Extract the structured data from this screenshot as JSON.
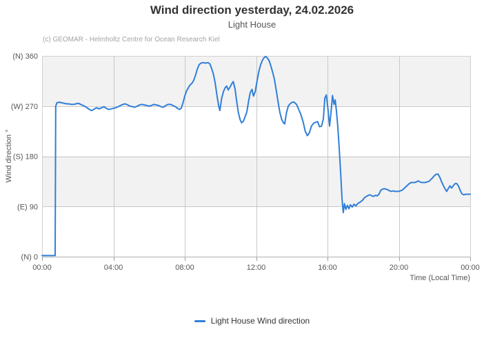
{
  "header": {
    "title": "Wind direction yesterday, 24.02.2026",
    "subtitle": "Light House"
  },
  "credits": "(c) GEOMAR - Helmholtz Centre for Ocean Research Kiel",
  "legend": {
    "label": "Light House Wind direction"
  },
  "colors": {
    "series_line": "#2f7ed8",
    "band_fill": "#f2f2f2",
    "grid_line": "#c8c8c8",
    "plot_border": "#d0d0d0",
    "axis_line": "#b0b0b0",
    "tick_mark": "#999999",
    "axis_label": "#555555"
  },
  "chart_data": {
    "type": "line",
    "title": "Wind direction yesterday, 24.02.2026",
    "subtitle": "Light House",
    "xlabel": "Time (Local Time)",
    "ylabel": "Wind direction °",
    "ylim": [
      0,
      360
    ],
    "xlim_minutes": [
      0,
      1440
    ],
    "grid": true,
    "legend_position": "bottom-center",
    "alternating_bands_deg": [
      [
        270,
        360
      ],
      [
        90,
        180
      ]
    ],
    "yticks": [
      {
        "value": 360,
        "label": "(N) 360"
      },
      {
        "value": 270,
        "label": "(W) 270"
      },
      {
        "value": 180,
        "label": "(S) 180"
      },
      {
        "value": 90,
        "label": "(E) 90"
      },
      {
        "value": 0,
        "label": "(N) 0"
      }
    ],
    "xticks": [
      {
        "minutes": 0,
        "label": "00:00"
      },
      {
        "minutes": 240,
        "label": "04:00"
      },
      {
        "minutes": 480,
        "label": "08:00"
      },
      {
        "minutes": 720,
        "label": "12:00"
      },
      {
        "minutes": 960,
        "label": "16:00"
      },
      {
        "minutes": 1200,
        "label": "20:00"
      },
      {
        "minutes": 1440,
        "label": "00:00"
      }
    ],
    "series": [
      {
        "name": "Light House Wind direction",
        "color": "#2f7ed8",
        "points_min_deg": [
          [
            0,
            2
          ],
          [
            10,
            2
          ],
          [
            20,
            2
          ],
          [
            30,
            2
          ],
          [
            40,
            2
          ],
          [
            44,
            2
          ],
          [
            46,
            270
          ],
          [
            50,
            276
          ],
          [
            58,
            277
          ],
          [
            66,
            276
          ],
          [
            74,
            275
          ],
          [
            82,
            274
          ],
          [
            90,
            274
          ],
          [
            98,
            273
          ],
          [
            106,
            273
          ],
          [
            114,
            274
          ],
          [
            122,
            275
          ],
          [
            130,
            273
          ],
          [
            138,
            271
          ],
          [
            146,
            269
          ],
          [
            154,
            266
          ],
          [
            162,
            263
          ],
          [
            168,
            262
          ],
          [
            176,
            265
          ],
          [
            184,
            267
          ],
          [
            192,
            265
          ],
          [
            200,
            267
          ],
          [
            208,
            269
          ],
          [
            216,
            266
          ],
          [
            224,
            264
          ],
          [
            232,
            265
          ],
          [
            240,
            266
          ],
          [
            248,
            267
          ],
          [
            256,
            269
          ],
          [
            264,
            271
          ],
          [
            272,
            273
          ],
          [
            280,
            274
          ],
          [
            288,
            272
          ],
          [
            296,
            270
          ],
          [
            304,
            269
          ],
          [
            312,
            268
          ],
          [
            320,
            270
          ],
          [
            328,
            272
          ],
          [
            336,
            273
          ],
          [
            344,
            272
          ],
          [
            352,
            271
          ],
          [
            360,
            270
          ],
          [
            368,
            271
          ],
          [
            376,
            273
          ],
          [
            384,
            272
          ],
          [
            392,
            271
          ],
          [
            400,
            269
          ],
          [
            408,
            268
          ],
          [
            416,
            271
          ],
          [
            424,
            273
          ],
          [
            432,
            273
          ],
          [
            440,
            271
          ],
          [
            448,
            269
          ],
          [
            456,
            266
          ],
          [
            462,
            264
          ],
          [
            468,
            266
          ],
          [
            474,
            276
          ],
          [
            480,
            288
          ],
          [
            486,
            297
          ],
          [
            492,
            303
          ],
          [
            498,
            308
          ],
          [
            504,
            311
          ],
          [
            510,
            316
          ],
          [
            516,
            325
          ],
          [
            522,
            336
          ],
          [
            528,
            344
          ],
          [
            534,
            347
          ],
          [
            542,
            348
          ],
          [
            550,
            347
          ],
          [
            558,
            348
          ],
          [
            564,
            346
          ],
          [
            570,
            338
          ],
          [
            576,
            328
          ],
          [
            582,
            312
          ],
          [
            588,
            290
          ],
          [
            594,
            270
          ],
          [
            598,
            262
          ],
          [
            604,
            284
          ],
          [
            610,
            296
          ],
          [
            616,
            303
          ],
          [
            621,
            306
          ],
          [
            626,
            299
          ],
          [
            632,
            304
          ],
          [
            638,
            310
          ],
          [
            643,
            314
          ],
          [
            649,
            301
          ],
          [
            654,
            281
          ],
          [
            660,
            259
          ],
          [
            666,
            246
          ],
          [
            671,
            240
          ],
          [
            677,
            243
          ],
          [
            683,
            251
          ],
          [
            689,
            260
          ],
          [
            695,
            280
          ],
          [
            700,
            294
          ],
          [
            706,
            300
          ],
          [
            711,
            288
          ],
          [
            717,
            296
          ],
          [
            723,
            315
          ],
          [
            729,
            332
          ],
          [
            735,
            344
          ],
          [
            741,
            352
          ],
          [
            747,
            357
          ],
          [
            752,
            359
          ],
          [
            758,
            356
          ],
          [
            764,
            351
          ],
          [
            770,
            341
          ],
          [
            776,
            330
          ],
          [
            782,
            317
          ],
          [
            788,
            297
          ],
          [
            794,
            277
          ],
          [
            800,
            258
          ],
          [
            806,
            246
          ],
          [
            812,
            240
          ],
          [
            816,
            238
          ],
          [
            822,
            258
          ],
          [
            828,
            270
          ],
          [
            834,
            274
          ],
          [
            841,
            277
          ],
          [
            848,
            277
          ],
          [
            856,
            273
          ],
          [
            864,
            263
          ],
          [
            871,
            254
          ],
          [
            878,
            242
          ],
          [
            885,
            225
          ],
          [
            892,
            217
          ],
          [
            899,
            222
          ],
          [
            906,
            234
          ],
          [
            913,
            239
          ],
          [
            920,
            241
          ],
          [
            927,
            242
          ],
          [
            933,
            233
          ],
          [
            940,
            234
          ],
          [
            946,
            247
          ],
          [
            951,
            284
          ],
          [
            956,
            290
          ],
          [
            961,
            268
          ],
          [
            967,
            234
          ],
          [
            972,
            260
          ],
          [
            977,
            289
          ],
          [
            982,
            273
          ],
          [
            986,
            281
          ],
          [
            990,
            262
          ],
          [
            994,
            237
          ],
          [
            999,
            198
          ],
          [
            1004,
            152
          ],
          [
            1009,
            103
          ],
          [
            1013,
            79
          ],
          [
            1017,
            95
          ],
          [
            1022,
            85
          ],
          [
            1027,
            92
          ],
          [
            1032,
            86
          ],
          [
            1037,
            93
          ],
          [
            1043,
            89
          ],
          [
            1049,
            94
          ],
          [
            1055,
            91
          ],
          [
            1061,
            95
          ],
          [
            1067,
            97
          ],
          [
            1073,
            99
          ],
          [
            1079,
            102
          ],
          [
            1085,
            106
          ],
          [
            1091,
            108
          ],
          [
            1097,
            110
          ],
          [
            1103,
            111
          ],
          [
            1109,
            109
          ],
          [
            1115,
            108
          ],
          [
            1121,
            110
          ],
          [
            1127,
            109
          ],
          [
            1133,
            112
          ],
          [
            1139,
            119
          ],
          [
            1145,
            121
          ],
          [
            1151,
            122
          ],
          [
            1157,
            121
          ],
          [
            1163,
            120
          ],
          [
            1169,
            118
          ],
          [
            1175,
            117
          ],
          [
            1181,
            118
          ],
          [
            1187,
            117
          ],
          [
            1193,
            117
          ],
          [
            1199,
            117
          ],
          [
            1205,
            118
          ],
          [
            1211,
            119
          ],
          [
            1217,
            122
          ],
          [
            1223,
            125
          ],
          [
            1229,
            128
          ],
          [
            1235,
            131
          ],
          [
            1241,
            133
          ],
          [
            1247,
            133
          ],
          [
            1253,
            133
          ],
          [
            1259,
            134
          ],
          [
            1265,
            136
          ],
          [
            1271,
            134
          ],
          [
            1277,
            133
          ],
          [
            1283,
            133
          ],
          [
            1289,
            133
          ],
          [
            1295,
            134
          ],
          [
            1301,
            135
          ],
          [
            1307,
            138
          ],
          [
            1313,
            141
          ],
          [
            1319,
            145
          ],
          [
            1326,
            148
          ],
          [
            1332,
            148
          ],
          [
            1338,
            142
          ],
          [
            1344,
            134
          ],
          [
            1350,
            127
          ],
          [
            1356,
            121
          ],
          [
            1361,
            117
          ],
          [
            1367,
            123
          ],
          [
            1372,
            127
          ],
          [
            1377,
            123
          ],
          [
            1383,
            127
          ],
          [
            1389,
            131
          ],
          [
            1395,
            131
          ],
          [
            1401,
            126
          ],
          [
            1407,
            118
          ],
          [
            1412,
            113
          ],
          [
            1418,
            111
          ],
          [
            1425,
            112
          ],
          [
            1432,
            112
          ],
          [
            1440,
            112
          ]
        ]
      }
    ]
  }
}
